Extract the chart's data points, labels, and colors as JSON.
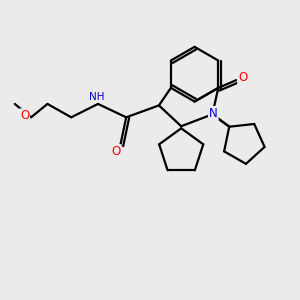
{
  "bg_color": "#ebebeb",
  "bond_color": "#000000",
  "bond_width": 1.6,
  "atom_colors": {
    "N": "#0000cc",
    "O": "#ff0000",
    "C": "#000000"
  },
  "figsize": [
    3.0,
    3.0
  ],
  "dpi": 100
}
